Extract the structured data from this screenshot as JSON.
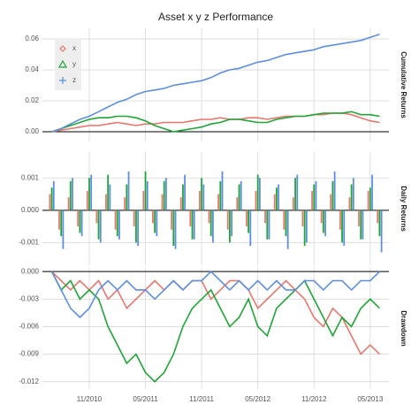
{
  "chart_data": [
    {
      "type": "line",
      "title": "Asset x y z Performance",
      "panel_label": "Cumulative Returns",
      "grid": true,
      "legend": "top-left",
      "x": [
        "2010-07",
        "2010-08",
        "2010-09",
        "2010-10",
        "2010-11",
        "2010-12",
        "2011-01",
        "2011-02",
        "2011-03",
        "2011-04",
        "2011-05",
        "2011-06",
        "2011-07",
        "2011-08",
        "2011-09",
        "2011-10",
        "2011-11",
        "2011-12",
        "2012-01",
        "2012-02",
        "2012-03",
        "2012-04",
        "2012-05",
        "2012-06",
        "2012-07",
        "2012-08",
        "2012-09",
        "2012-10",
        "2012-11",
        "2012-12",
        "2013-01",
        "2013-02",
        "2013-03",
        "2013-04",
        "2013-05",
        "2013-06"
      ],
      "xlim": [
        "2010-06",
        "2013-07"
      ],
      "ylim": [
        -0.0063,
        0.0669
      ],
      "yticks": [
        {
          "value": 0,
          "label": "0.00"
        },
        0.02,
        0.04,
        0.06
      ],
      "series": [
        {
          "name": "x",
          "color": "#e8766d",
          "marker": "diamond",
          "values": [
            0.0,
            0.001,
            0.002,
            0.003,
            0.004,
            0.004,
            0.005,
            0.006,
            0.005,
            0.004,
            0.005,
            0.005,
            0.006,
            0.006,
            0.006,
            0.007,
            0.008,
            0.008,
            0.009,
            0.008,
            0.008,
            0.009,
            0.009,
            0.008,
            0.009,
            0.01,
            0.01,
            0.01,
            0.011,
            0.011,
            0.012,
            0.012,
            0.011,
            0.009,
            0.007,
            0.006
          ]
        },
        {
          "name": "y",
          "color": "#1fa535",
          "marker": "triangle",
          "values": [
            0.0,
            0.002,
            0.004,
            0.006,
            0.008,
            0.009,
            0.009,
            0.01,
            0.01,
            0.009,
            0.007,
            0.004,
            0.002,
            0.0,
            0.001,
            0.002,
            0.003,
            0.005,
            0.006,
            0.008,
            0.008,
            0.007,
            0.006,
            0.006,
            0.008,
            0.009,
            0.01,
            0.01,
            0.011,
            0.012,
            0.012,
            0.012,
            0.013,
            0.011,
            0.011,
            0.01
          ]
        },
        {
          "name": "z",
          "color": "#5c8ee0",
          "marker": "plus",
          "values": [
            0.0,
            0.002,
            0.005,
            0.008,
            0.01,
            0.013,
            0.016,
            0.019,
            0.021,
            0.024,
            0.026,
            0.027,
            0.028,
            0.03,
            0.031,
            0.032,
            0.033,
            0.035,
            0.038,
            0.04,
            0.041,
            0.043,
            0.045,
            0.046,
            0.048,
            0.05,
            0.051,
            0.052,
            0.053,
            0.055,
            0.056,
            0.057,
            0.058,
            0.059,
            0.061,
            0.063
          ]
        }
      ]
    },
    {
      "type": "bar",
      "panel_label": "Daily Returns",
      "grid": true,
      "x": [
        "2010-07",
        "2010-08",
        "2010-09",
        "2010-10",
        "2010-11",
        "2010-12",
        "2011-01",
        "2011-02",
        "2011-03",
        "2011-04",
        "2011-05",
        "2011-06",
        "2011-07",
        "2011-08",
        "2011-09",
        "2011-10",
        "2011-11",
        "2011-12",
        "2012-01",
        "2012-02",
        "2012-03",
        "2012-04",
        "2012-05",
        "2012-06",
        "2012-07",
        "2012-08",
        "2012-09",
        "2012-10",
        "2012-11",
        "2012-12",
        "2013-01",
        "2013-02",
        "2013-03",
        "2013-04",
        "2013-05",
        "2013-06"
      ],
      "xlim": [
        "2010-06",
        "2013-07"
      ],
      "ylim": [
        -0.0017,
        0.0018
      ],
      "yticks": [
        -0.001,
        {
          "value": 0,
          "label": "0.000"
        },
        0.001
      ],
      "series": [
        {
          "name": "x",
          "color": "#e8766d",
          "values": [
            0.0005,
            -0.0006,
            0.0004,
            -0.0005,
            0.0006,
            -0.0004,
            0.0005,
            -0.0006,
            0.0004,
            -0.0005,
            0.0006,
            -0.0004,
            0.0005,
            -0.0006,
            0.0004,
            -0.0005,
            0.0006,
            -0.0004,
            0.0005,
            -0.0006,
            0.0004,
            -0.0005,
            0.0006,
            -0.0004,
            0.0005,
            -0.0006,
            0.0004,
            -0.0005,
            0.0006,
            -0.0004,
            0.0005,
            -0.0006,
            0.0004,
            -0.0005,
            0.0006,
            -0.0004
          ]
        },
        {
          "name": "y",
          "color": "#1fa535",
          "values": [
            0.0007,
            -0.0008,
            0.0009,
            -0.0007,
            0.001,
            -0.0009,
            0.0011,
            -0.0008,
            0.0008,
            -0.001,
            0.0012,
            -0.0007,
            0.0009,
            -0.0011,
            0.0008,
            -0.0009,
            0.001,
            -0.0008,
            0.0009,
            -0.001,
            0.0008,
            -0.0007,
            0.0011,
            -0.0009,
            0.0007,
            -0.0008,
            0.001,
            -0.0011,
            0.0008,
            -0.0007,
            0.0009,
            -0.001,
            0.0008,
            -0.0009,
            0.0007,
            -0.0008
          ]
        },
        {
          "name": "z",
          "color": "#5c8ee0",
          "values": [
            0.0009,
            -0.0012,
            0.001,
            -0.0008,
            0.0011,
            -0.001,
            0.0008,
            -0.0009,
            0.0012,
            -0.0011,
            0.0009,
            -0.0008,
            0.001,
            -0.0012,
            0.0011,
            -0.0009,
            0.0008,
            -0.001,
            0.0012,
            -0.0008,
            0.0009,
            -0.0011,
            0.001,
            -0.0009,
            0.0008,
            -0.0012,
            0.0011,
            -0.001,
            0.0009,
            -0.0008,
            0.0012,
            -0.0011,
            0.001,
            -0.0009,
            0.0011,
            -0.0013
          ]
        }
      ]
    },
    {
      "type": "line",
      "panel_label": "Drawdown",
      "grid": true,
      "x": [
        "2010-07",
        "2010-08",
        "2010-09",
        "2010-10",
        "2010-11",
        "2010-12",
        "2011-01",
        "2011-02",
        "2011-03",
        "2011-04",
        "2011-05",
        "2011-06",
        "2011-07",
        "2011-08",
        "2011-09",
        "2011-10",
        "2011-11",
        "2011-12",
        "2012-01",
        "2012-02",
        "2012-03",
        "2012-04",
        "2012-05",
        "2012-06",
        "2012-07",
        "2012-08",
        "2012-09",
        "2012-10",
        "2012-11",
        "2012-12",
        "2013-01",
        "2013-02",
        "2013-03",
        "2013-04",
        "2013-05",
        "2013-06"
      ],
      "xlim": [
        "2010-06",
        "2013-07"
      ],
      "ylim": [
        -0.0128,
        0.0004
      ],
      "xticks": [
        {
          "value": "2010-11",
          "label": "11/2010"
        },
        {
          "value": "2011-05",
          "label": "05/2011"
        },
        {
          "value": "2011-11",
          "label": "11/2011"
        },
        {
          "value": "2012-05",
          "label": "05/2012"
        },
        {
          "value": "2012-11",
          "label": "11/2012"
        },
        {
          "value": "2013-05",
          "label": "05/2013"
        }
      ],
      "yticks": [
        -0.012,
        -0.009,
        -0.006,
        -0.003,
        {
          "value": 0,
          "label": "0.000"
        }
      ],
      "series": [
        {
          "name": "x",
          "color": "#e8766d",
          "values": [
            0.0,
            -0.001,
            -0.002,
            -0.001,
            -0.002,
            -0.001,
            -0.003,
            -0.002,
            -0.004,
            -0.003,
            -0.002,
            -0.001,
            -0.002,
            -0.001,
            -0.002,
            -0.001,
            -0.001,
            -0.003,
            -0.002,
            -0.001,
            -0.001,
            -0.002,
            -0.004,
            -0.003,
            -0.002,
            -0.001,
            -0.002,
            -0.003,
            -0.005,
            -0.006,
            -0.004,
            -0.005,
            -0.007,
            -0.009,
            -0.008,
            -0.009
          ]
        },
        {
          "name": "y",
          "color": "#1fa535",
          "values": [
            0.0,
            -0.002,
            -0.001,
            -0.003,
            -0.002,
            -0.003,
            -0.006,
            -0.008,
            -0.01,
            -0.009,
            -0.011,
            -0.012,
            -0.011,
            -0.009,
            -0.006,
            -0.004,
            -0.003,
            -0.002,
            -0.004,
            -0.006,
            -0.005,
            -0.003,
            -0.006,
            -0.007,
            -0.004,
            -0.003,
            -0.002,
            -0.001,
            -0.003,
            -0.005,
            -0.007,
            -0.005,
            -0.006,
            -0.004,
            -0.003,
            -0.004
          ]
        },
        {
          "name": "z",
          "color": "#5c8ee0",
          "values": [
            0.0,
            -0.002,
            -0.004,
            -0.005,
            -0.004,
            -0.002,
            -0.001,
            -0.002,
            -0.001,
            -0.002,
            -0.002,
            -0.003,
            -0.002,
            -0.001,
            -0.002,
            -0.001,
            -0.001,
            0.0,
            -0.001,
            -0.002,
            -0.001,
            -0.002,
            -0.001,
            -0.002,
            -0.001,
            -0.002,
            -0.002,
            -0.001,
            -0.001,
            -0.002,
            -0.001,
            -0.001,
            -0.002,
            -0.001,
            -0.001,
            0.0
          ]
        }
      ]
    }
  ]
}
